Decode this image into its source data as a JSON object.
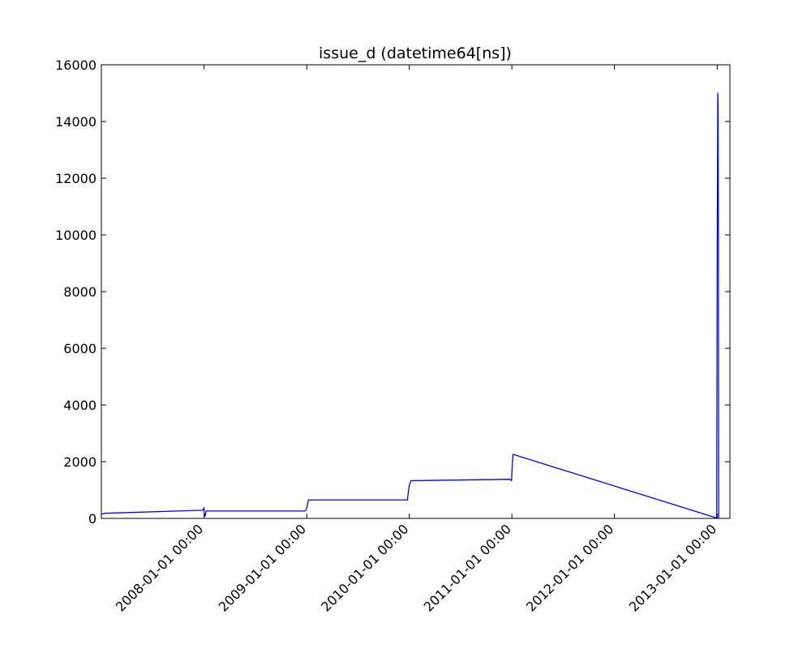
{
  "chart_data": {
    "type": "line",
    "title": "issue_d (datetime64[ns])",
    "xlabel": "",
    "ylabel": "",
    "ylim": [
      0,
      16000
    ],
    "xlim": [
      "2007-01-01 00:00",
      "2013-02-15 00:00"
    ],
    "grid": false,
    "y_ticks": [
      0,
      2000,
      4000,
      6000,
      8000,
      10000,
      12000,
      14000,
      16000
    ],
    "y_tick_labels": [
      "0",
      "2000",
      "4000",
      "6000",
      "8000",
      "10000",
      "12000",
      "14000",
      "16000"
    ],
    "x_ticks": [
      "2008-01-01 00:00",
      "2009-01-01 00:00",
      "2010-01-01 00:00",
      "2011-01-01 00:00",
      "2012-01-01 00:00",
      "2013-01-01 00:00"
    ],
    "x_tick_labels": [
      "2008-01-01 00:00",
      "2009-01-01 00:00",
      "2010-01-01 00:00",
      "2011-01-01 00:00",
      "2012-01-01 00:00",
      "2013-01-01 00:00"
    ],
    "series": [
      {
        "color": "#0000ff",
        "points": [
          [
            "2007-01-01 00:00",
            150
          ],
          [
            "2007-01-15 00:00",
            180
          ],
          [
            "2007-12-28 00:00",
            290
          ],
          [
            "2008-01-01 00:00",
            380
          ],
          [
            "2008-01-03 00:00",
            80
          ],
          [
            "2008-01-05 00:00",
            80
          ],
          [
            "2008-01-09 00:00",
            260
          ],
          [
            "2008-12-25 00:00",
            260
          ],
          [
            "2008-12-31 00:00",
            330
          ],
          [
            "2009-01-07 00:00",
            650
          ],
          [
            "2009-12-25 00:00",
            650
          ],
          [
            "2009-12-31 00:00",
            1100
          ],
          [
            "2010-01-02 00:00",
            1200
          ],
          [
            "2010-01-07 00:00",
            1330
          ],
          [
            "2010-12-25 00:00",
            1380
          ],
          [
            "2010-12-31 00:00",
            1330
          ],
          [
            "2011-01-01 00:00",
            1600
          ],
          [
            "2011-01-05 00:00",
            2260
          ],
          [
            "2012-12-25 00:00",
            30
          ],
          [
            "2012-12-30 00:00",
            30
          ],
          [
            "2013-01-01 00:00",
            10000
          ],
          [
            "2013-01-03 00:00",
            15000
          ],
          [
            "2013-01-04 00:00",
            14600
          ],
          [
            "2013-01-05 00:00",
            10000
          ],
          [
            "2013-01-06 00:00",
            0
          ]
        ]
      }
    ]
  }
}
